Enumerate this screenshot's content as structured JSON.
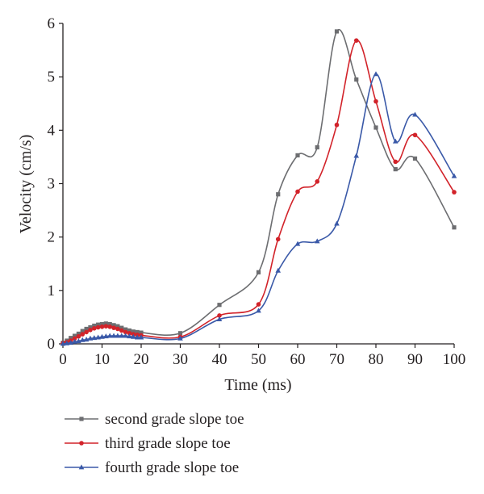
{
  "chart_data": {
    "type": "line",
    "xlabel": "Time (ms)",
    "ylabel": "Velocity (cm/s)",
    "xlim": [
      0,
      100
    ],
    "ylim": [
      0,
      6
    ],
    "xticks": [
      0,
      10,
      20,
      30,
      40,
      50,
      60,
      70,
      80,
      90,
      100
    ],
    "yticks": [
      0,
      1,
      2,
      3,
      4,
      5,
      6
    ],
    "grid": false,
    "legend": "bottom",
    "series": [
      {
        "name": "second grade slope toe",
        "color": "#6d6e71",
        "marker": "square",
        "x": [
          0,
          1,
          2,
          3,
          4,
          5,
          6,
          7,
          8,
          9,
          10,
          11,
          12,
          13,
          14,
          15,
          16,
          17,
          18,
          19,
          20,
          30,
          40,
          50,
          55,
          60,
          65,
          70,
          75,
          80,
          85,
          90,
          100
        ],
        "y": [
          0.02,
          0.06,
          0.11,
          0.15,
          0.19,
          0.24,
          0.28,
          0.31,
          0.34,
          0.36,
          0.37,
          0.38,
          0.37,
          0.35,
          0.33,
          0.3,
          0.27,
          0.25,
          0.23,
          0.22,
          0.21,
          0.2,
          0.73,
          1.34,
          2.8,
          3.53,
          3.68,
          5.85,
          4.95,
          4.05,
          3.27,
          3.47,
          2.18
        ]
      },
      {
        "name": "third grade slope toe",
        "color": "#d2232a",
        "marker": "circle",
        "x": [
          0,
          1,
          2,
          3,
          4,
          5,
          6,
          7,
          8,
          9,
          10,
          11,
          12,
          13,
          14,
          15,
          16,
          17,
          18,
          19,
          20,
          30,
          40,
          50,
          55,
          60,
          65,
          70,
          75,
          80,
          85,
          90,
          100
        ],
        "y": [
          0.01,
          0.03,
          0.06,
          0.1,
          0.14,
          0.18,
          0.22,
          0.26,
          0.29,
          0.31,
          0.32,
          0.33,
          0.32,
          0.3,
          0.28,
          0.25,
          0.22,
          0.2,
          0.18,
          0.17,
          0.16,
          0.13,
          0.53,
          0.74,
          1.96,
          2.85,
          3.04,
          4.1,
          5.68,
          4.54,
          3.41,
          3.91,
          2.84
        ]
      },
      {
        "name": "fourth grade slope toe",
        "color": "#3a59a8",
        "marker": "triangle",
        "x": [
          0,
          1,
          2,
          3,
          4,
          5,
          6,
          7,
          8,
          9,
          10,
          11,
          12,
          13,
          14,
          15,
          16,
          17,
          18,
          19,
          20,
          30,
          40,
          50,
          55,
          60,
          65,
          70,
          75,
          80,
          85,
          90,
          100
        ],
        "y": [
          0,
          0.01,
          0.02,
          0.04,
          0.05,
          0.07,
          0.08,
          0.1,
          0.11,
          0.12,
          0.13,
          0.14,
          0.15,
          0.15,
          0.15,
          0.15,
          0.15,
          0.14,
          0.13,
          0.12,
          0.12,
          0.1,
          0.46,
          0.62,
          1.37,
          1.87,
          1.92,
          2.25,
          3.52,
          5.05,
          3.79,
          4.29,
          3.14
        ]
      }
    ]
  }
}
